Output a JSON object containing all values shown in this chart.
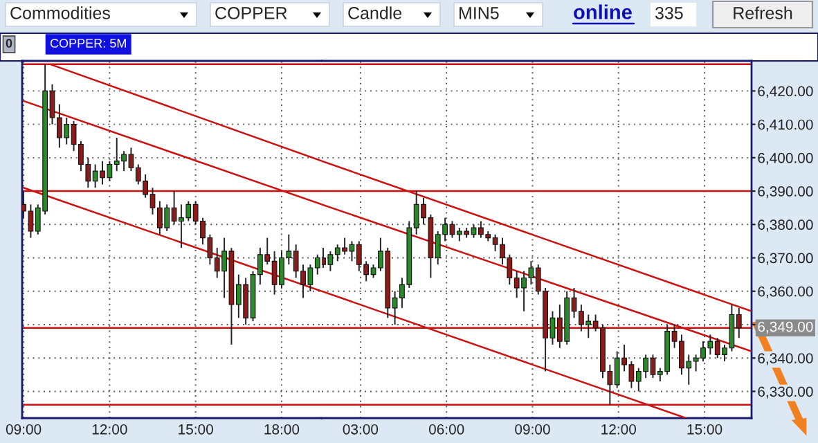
{
  "chart_data": [
    {
      "type": "candlestick",
      "title": "COPPER: 5M",
      "annotations": [
        "Commodities",
        "COPPER",
        "Candle",
        "MIN5",
        "online",
        "335",
        "Refresh",
        "0"
      ],
      "x": [
        9,
        9.25,
        9.5,
        9.75,
        10,
        10.25,
        10.5,
        10.75,
        11,
        11.25,
        11.5,
        11.75,
        12,
        12.25,
        12.5,
        12.75,
        13,
        13.25,
        13.5,
        13.75,
        14,
        14.25,
        14.5,
        14.75,
        15,
        15.25,
        15.5,
        15.75,
        16,
        16.25,
        16.5,
        16.75,
        17,
        17.25,
        17.5,
        17.75,
        18,
        18.25,
        18.5,
        18.75,
        19,
        19.25
      ],
      "ohlc": [
        [
          6386,
          6390,
          6382,
          6384
        ],
        [
          6384,
          6386,
          6376,
          6378
        ],
        [
          6378,
          6386,
          6377,
          6385
        ],
        [
          6384,
          6428,
          6383,
          6420
        ],
        [
          6420,
          6422,
          6410,
          6412
        ],
        [
          6412,
          6416,
          6403,
          6406
        ],
        [
          6406,
          6412,
          6404,
          6410
        ],
        [
          6410,
          6411,
          6402,
          6404
        ],
        [
          6404,
          6405,
          6396,
          6398
        ],
        [
          6398,
          6400,
          6391,
          6393
        ],
        [
          6393,
          6398,
          6391,
          6396
        ],
        [
          6396,
          6399,
          6392,
          6394
        ],
        [
          6394,
          6399,
          6393,
          6398
        ],
        [
          6398,
          6406,
          6396,
          6399
        ],
        [
          6399,
          6402,
          6396,
          6401
        ],
        [
          6401,
          6403,
          6396,
          6397
        ],
        [
          6397,
          6398,
          6392,
          6393
        ],
        [
          6393,
          6395,
          6388,
          6389
        ],
        [
          6389,
          6391,
          6383,
          6385
        ],
        [
          6385,
          6387,
          6377,
          6379
        ],
        [
          6379,
          6386,
          6378,
          6385
        ],
        [
          6385,
          6390,
          6380,
          6381
        ],
        [
          6381,
          6386,
          6373,
          6382
        ],
        [
          6382,
          6387,
          6381,
          6386
        ],
        [
          6386,
          6387,
          6380,
          6381
        ],
        [
          6381,
          6382,
          6374,
          6376
        ],
        [
          6376,
          6377,
          6368,
          6370
        ],
        [
          6370,
          6373,
          6364,
          6366
        ],
        [
          6366,
          6376,
          6358,
          6372
        ],
        [
          6372,
          6373,
          6344,
          6356
        ],
        [
          6356,
          6365,
          6352,
          6362
        ],
        [
          6362,
          6364,
          6350,
          6352
        ],
        [
          6352,
          6366,
          6351,
          6365
        ],
        [
          6365,
          6373,
          6362,
          6371
        ],
        [
          6371,
          6376,
          6368,
          6369
        ],
        [
          6369,
          6372,
          6359,
          6362
        ],
        [
          6362,
          6372,
          6361,
          6370
        ],
        [
          6370,
          6377,
          6368,
          6372
        ],
        [
          6372,
          6374,
          6364,
          6366
        ],
        [
          6366,
          6368,
          6358,
          6362
        ],
        [
          6362,
          6368,
          6360,
          6367
        ],
        [
          6367,
          6371,
          6365,
          6370
        ]
      ],
      "series": [
        {
          "type": "line",
          "x": [
            9.93,
            19.4
          ],
          "values": [
            6428,
            6399
          ],
          "color": "#cc1111"
        },
        {
          "type": "line",
          "x": [
            9,
            19.4
          ],
          "values": [
            6417,
            6386
          ],
          "color": "#cc1111"
        },
        {
          "type": "line",
          "x": [
            9,
            19.4
          ],
          "values": [
            6391,
            6360
          ],
          "color": "#cc1111"
        }
      ],
      "ref_lines": [
        {
          "axis": "y",
          "value": 6428,
          "color": "#cc1111"
        },
        {
          "axis": "y",
          "value": 6390,
          "color": "#cc1111"
        },
        {
          "axis": "y",
          "value": 6349,
          "color": "#cc1111"
        },
        {
          "axis": "y",
          "value": 6326,
          "color": "#cc1111"
        }
      ],
      "xlim": [
        8.95,
        19.4
      ],
      "ylim": [
        6322,
        6429
      ],
      "xticks": [
        {
          "value": 9,
          "label": "09:00"
        },
        {
          "value": 12,
          "label": "12:00"
        },
        {
          "value": 15,
          "label": "15:00"
        },
        {
          "value": 18,
          "label": "18:00"
        }
      ],
      "yticks": [
        6330,
        6340,
        6350,
        6360,
        6370,
        6380,
        6390,
        6400,
        6410,
        6420
      ],
      "tick_labels": "x",
      "grid": true,
      "line_style": "solid"
    },
    {
      "type": "candlestick",
      "x": [
        1.7,
        1.95,
        2.2,
        2.45,
        2.7,
        2.95,
        3.2,
        3.45,
        3.7,
        3.95,
        4.2,
        4.45,
        4.7,
        4.95,
        5.2,
        5.45,
        5.7,
        5.95,
        6.2,
        6.45,
        6.7,
        6.95,
        7.2,
        7.45,
        7.7,
        7.95,
        8.2,
        8.45,
        8.7,
        8.95,
        9.2,
        9.45,
        9.7,
        9.95,
        10.2,
        10.45,
        10.7,
        10.95,
        11.2,
        11.45,
        11.7,
        11.95,
        12.2,
        12.45,
        12.7,
        12.95,
        13.2,
        13.45,
        13.7,
        13.95,
        14.2,
        14.45,
        14.7,
        14.95,
        15.2,
        15.45,
        15.7,
        15.95,
        16.2
      ],
      "ohlc": [
        [
          6370,
          6373,
          6367,
          6368
        ],
        [
          6368,
          6372,
          6366,
          6371
        ],
        [
          6371,
          6374,
          6369,
          6373
        ],
        [
          6373,
          6376,
          6371,
          6372
        ],
        [
          6372,
          6375,
          6369,
          6374
        ],
        [
          6374,
          6375,
          6366,
          6368
        ],
        [
          6368,
          6369,
          6363,
          6365
        ],
        [
          6365,
          6368,
          6364,
          6367
        ],
        [
          6367,
          6376,
          6366,
          6372
        ],
        [
          6372,
          6373,
          6352,
          6355
        ],
        [
          6355,
          6360,
          6350,
          6358
        ],
        [
          6358,
          6364,
          6355,
          6362
        ],
        [
          6362,
          6381,
          6361,
          6379
        ],
        [
          6379,
          6390,
          6377,
          6386
        ],
        [
          6386,
          6388,
          6380,
          6382
        ],
        [
          6382,
          6383,
          6364,
          6370
        ],
        [
          6370,
          6378,
          6368,
          6377
        ],
        [
          6377,
          6382,
          6375,
          6380
        ],
        [
          6380,
          6381,
          6376,
          6377
        ],
        [
          6377,
          6379,
          6375,
          6378
        ],
        [
          6378,
          6379,
          6376,
          6377
        ],
        [
          6377,
          6380,
          6376,
          6379
        ],
        [
          6379,
          6381,
          6376,
          6377
        ],
        [
          6377,
          6378,
          6375,
          6376
        ],
        [
          6376,
          6377,
          6372,
          6374
        ],
        [
          6374,
          6376,
          6368,
          6370
        ],
        [
          6370,
          6371,
          6362,
          6364
        ],
        [
          6364,
          6366,
          6358,
          6361
        ],
        [
          6361,
          6366,
          6354,
          6364
        ],
        [
          6364,
          6369,
          6362,
          6367
        ],
        [
          6367,
          6368,
          6359,
          6360
        ],
        [
          6360,
          6361,
          6336,
          6346
        ],
        [
          6346,
          6354,
          6344,
          6352
        ],
        [
          6352,
          6356,
          6343,
          6345
        ],
        [
          6345,
          6360,
          6344,
          6358
        ],
        [
          6358,
          6361,
          6352,
          6354
        ],
        [
          6354,
          6356,
          6348,
          6350
        ],
        [
          6350,
          6353,
          6346,
          6351
        ],
        [
          6351,
          6353,
          6348,
          6349
        ],
        [
          6349,
          6350,
          6334,
          6336
        ],
        [
          6336,
          6338,
          6326,
          6332
        ],
        [
          6332,
          6342,
          6331,
          6340
        ],
        [
          6340,
          6344,
          6336,
          6338
        ],
        [
          6338,
          6339,
          6331,
          6333
        ],
        [
          6333,
          6337,
          6330,
          6336
        ],
        [
          6336,
          6341,
          6334,
          6340
        ],
        [
          6340,
          6341,
          6334,
          6335
        ],
        [
          6335,
          6337,
          6333,
          6336
        ],
        [
          6336,
          6350,
          6335,
          6348
        ],
        [
          6348,
          6350,
          6343,
          6345
        ],
        [
          6345,
          6347,
          6335,
          6337
        ],
        [
          6337,
          6341,
          6332,
          6339
        ],
        [
          6339,
          6341,
          6336,
          6340
        ],
        [
          6340,
          6345,
          6339,
          6343
        ],
        [
          6343,
          6347,
          6341,
          6345
        ],
        [
          6345,
          6346,
          6340,
          6341
        ],
        [
          6341,
          6344,
          6339,
          6343
        ],
        [
          6343,
          6356,
          6342,
          6353
        ],
        [
          6353,
          6355,
          6346,
          6349
        ]
      ],
      "series": [
        {
          "type": "line",
          "x": [
            1.65,
            16.64
          ],
          "values": [
            6399,
            6354
          ],
          "color": "#cc1111"
        },
        {
          "type": "line",
          "x": [
            1.65,
            16.64
          ],
          "values": [
            6386,
            6342
          ],
          "color": "#cc1111"
        },
        {
          "type": "line",
          "x": [
            1.65,
            14.35
          ],
          "values": [
            6360,
            6322
          ],
          "color": "#cc1111"
        }
      ],
      "ref_lines": [
        {
          "axis": "y",
          "value": 6428,
          "color": "#cc1111"
        },
        {
          "axis": "y",
          "value": 6390,
          "color": "#cc1111"
        },
        {
          "axis": "y",
          "value": 6349,
          "label": "6,349.00",
          "color": "#cc1111"
        },
        {
          "axis": "y",
          "value": 6326,
          "color": "#cc1111"
        }
      ],
      "xlim": [
        1.65,
        16.64
      ],
      "ylim": [
        6322,
        6429
      ],
      "xticks": [
        {
          "value": 3,
          "label": "03:00"
        },
        {
          "value": 6,
          "label": "06:00"
        },
        {
          "value": 9,
          "label": "09:00"
        },
        {
          "value": 12,
          "label": "12:00"
        },
        {
          "value": 15,
          "label": "15:00"
        }
      ],
      "yticks": [
        {
          "value": 6330,
          "label": "6,330.00"
        },
        {
          "value": 6340,
          "label": "6,340.00"
        },
        {
          "value": 6350,
          "label": null
        },
        {
          "value": 6360,
          "label": "6,360.00"
        },
        {
          "value": 6370,
          "label": "6,370.00"
        },
        {
          "value": 6380,
          "label": "6,380.00"
        },
        {
          "value": 6390,
          "label": "6,390.00"
        },
        {
          "value": 6400,
          "label": "6,400.00"
        },
        {
          "value": 6410,
          "label": "6,410.00"
        },
        {
          "value": 6420,
          "label": "6,420.00"
        }
      ],
      "grid": true,
      "line_style": "solid"
    }
  ]
}
